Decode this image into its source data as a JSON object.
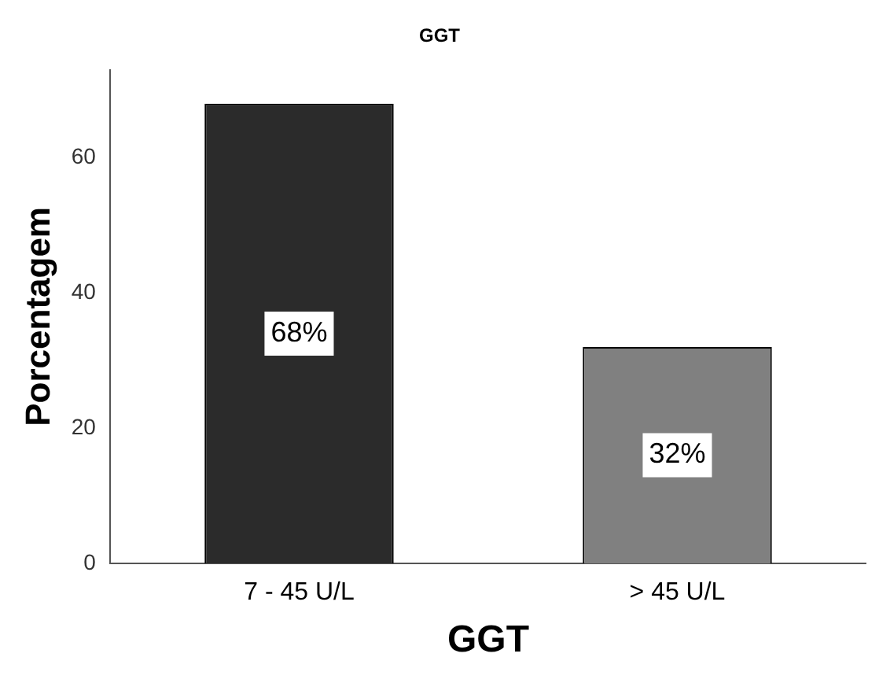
{
  "chart_data": {
    "type": "bar",
    "title": "GGT",
    "xlabel": "GGT",
    "ylabel": "Porcentagem",
    "categories": [
      "7 - 45 U/L",
      "> 45 U/L"
    ],
    "values": [
      68,
      32
    ],
    "colors": [
      "#2b2b2b",
      "#808080"
    ],
    "value_labels": [
      "68%",
      "32%"
    ],
    "ylim": [
      0,
      73
    ],
    "yticks": [
      0,
      20,
      40,
      60
    ],
    "grid": false,
    "legend": false
  }
}
